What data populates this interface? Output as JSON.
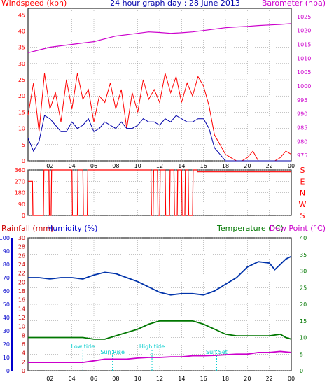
{
  "title": "24 hour graph day : 28 June 2013",
  "colors": {
    "wind": "#ff0000",
    "gust": "#ff0000",
    "avg_wind": "#0000aa",
    "barometer": "#cc00cc",
    "direction": "#ff0000",
    "humidity": "#0033aa",
    "temperature": "#007700",
    "dewpoint": "#cc00cc",
    "rain_axis": "#cc0000",
    "humidity_axis": "#0000cc",
    "temp_axis": "#007700",
    "events": "#00cccc",
    "axis": "#000000",
    "grid": "#888888",
    "border": "#000000"
  },
  "chart_data": [
    {
      "type": "line",
      "panel": "wind-pressure",
      "left_axis_label": "Windspeed (kph)",
      "right_axis_label": "Barometer (hpa)",
      "left_ticks": [
        "0",
        "5",
        "10",
        "15",
        "20",
        "25",
        "30",
        "35",
        "40",
        "45"
      ],
      "right_ticks": [
        "975",
        "980",
        "985",
        "990",
        "995",
        "1000",
        "1005",
        "1010",
        "1015",
        "1020",
        "1025"
      ],
      "x_ticks": [
        "02",
        "04",
        "06",
        "08",
        "10",
        "12",
        "14",
        "16",
        "18",
        "20",
        "22",
        "00"
      ],
      "xlim": [
        0,
        24
      ],
      "ylim_left": [
        0,
        47
      ],
      "ylim_right": [
        973,
        1028
      ],
      "grid": true,
      "series": [
        {
          "name": "Wind gust",
          "axis": "left",
          "x": [
            0,
            0.5,
            1,
            1.5,
            2,
            2.5,
            3,
            3.5,
            4,
            4.5,
            5,
            5.5,
            6,
            6.5,
            7,
            7.5,
            8,
            8.5,
            9,
            9.5,
            10,
            10.5,
            11,
            11.5,
            12,
            12.5,
            13,
            13.5,
            14,
            14.5,
            15,
            15.5,
            16,
            16.5,
            17,
            17.5,
            18,
            18.5,
            19,
            19.5,
            20,
            20.5,
            21,
            21.5,
            22,
            22.5,
            23,
            23.5,
            24
          ],
          "values": [
            14,
            24,
            9,
            27,
            16,
            21,
            12,
            25,
            16,
            27,
            19,
            22,
            12,
            20,
            18,
            24,
            16,
            22,
            10,
            21,
            15,
            25,
            19,
            22,
            18,
            27,
            21,
            26,
            18,
            24,
            20,
            26,
            23,
            17,
            8,
            5,
            2,
            1,
            0,
            0,
            1,
            3,
            0,
            0,
            0,
            0,
            1,
            3,
            2
          ]
        },
        {
          "name": "Wind average",
          "axis": "left",
          "x": [
            0,
            0.5,
            1,
            1.5,
            2,
            2.5,
            3,
            3.5,
            4,
            4.5,
            5,
            5.5,
            6,
            6.5,
            7,
            7.5,
            8,
            8.5,
            9,
            9.5,
            10,
            10.5,
            11,
            11.5,
            12,
            12.5,
            13,
            13.5,
            14,
            14.5,
            15,
            15.5,
            16,
            16.5,
            17,
            17.5,
            18,
            18.5,
            19,
            19.5,
            20,
            20.5,
            21,
            21.5,
            22,
            22.5,
            23,
            23.5,
            24
          ],
          "values": [
            7,
            3,
            6,
            14,
            13,
            11,
            9,
            9,
            12,
            10,
            11,
            13,
            9,
            10,
            12,
            11,
            10,
            12,
            10,
            10,
            11,
            13,
            12,
            12,
            11,
            13,
            12,
            14,
            13,
            12,
            12,
            13,
            13,
            10,
            4,
            2,
            0,
            0,
            0,
            0,
            0,
            0,
            0,
            0,
            0,
            0,
            0,
            0,
            0
          ]
        },
        {
          "name": "Barometer",
          "axis": "right",
          "x": [
            0,
            1,
            2,
            3,
            4,
            5,
            6,
            7,
            8,
            9,
            10,
            11,
            12,
            13,
            14,
            15,
            16,
            17,
            18,
            19,
            20,
            21,
            22,
            23,
            24
          ],
          "values": [
            1012,
            1013,
            1014,
            1014.5,
            1015,
            1015.5,
            1016,
            1017,
            1018,
            1018.5,
            1019,
            1019.5,
            1019.3,
            1019,
            1019.2,
            1019.5,
            1020,
            1020.5,
            1021,
            1021.3,
            1021.5,
            1021.8,
            1022,
            1022.2,
            1022.5
          ]
        }
      ]
    },
    {
      "type": "line",
      "panel": "wind-direction",
      "left_ticks": [
        "0",
        "90",
        "180",
        "270",
        "360"
      ],
      "right_ticks": [
        "S",
        "W",
        "N",
        "E",
        "S"
      ],
      "xlim": [
        0,
        24
      ],
      "ylim": [
        0,
        360
      ],
      "grid": true,
      "series": [
        {
          "name": "Direction",
          "x": [
            0,
            0.4,
            0.45,
            1.4,
            1.45,
            1.9,
            1.95,
            2.1,
            2.15,
            4.0,
            4.05,
            4.5,
            4.55,
            5.0,
            5.05,
            5.4,
            5.45,
            11.2,
            11.25,
            11.4,
            11.45,
            11.8,
            11.85,
            12.0,
            12.05,
            12.5,
            12.55,
            12.9,
            12.95,
            13.3,
            13.35,
            13.6,
            13.65,
            14.0,
            14.05,
            14.3,
            14.35,
            14.6,
            14.65,
            15.0,
            15.05,
            15.4,
            15.45,
            24
          ],
          "values": [
            270,
            270,
            0,
            0,
            360,
            360,
            0,
            0,
            360,
            360,
            0,
            0,
            360,
            360,
            0,
            0,
            360,
            360,
            0,
            0,
            360,
            360,
            0,
            0,
            360,
            360,
            0,
            0,
            360,
            360,
            0,
            0,
            360,
            360,
            0,
            0,
            360,
            360,
            0,
            0,
            360,
            360,
            345,
            345
          ]
        }
      ]
    },
    {
      "type": "line",
      "panel": "temperature-humidity-rain",
      "rain_axis_label": "Rainfall (mm)",
      "humidity_axis_label": "Humidity (%)",
      "temperature_axis_label": "Temperature (°C)",
      "dewpoint_axis_label": "Dew Point (°C)",
      "rain_ticks": [
        "0",
        "2",
        "4",
        "6",
        "8",
        "10",
        "12",
        "14",
        "16",
        "18",
        "20",
        "22",
        "24",
        "26",
        "28",
        "30"
      ],
      "humidity_ticks": [
        "0",
        "10",
        "20",
        "30",
        "40",
        "50",
        "60",
        "70",
        "80",
        "90",
        "100"
      ],
      "temp_ticks": [
        "0",
        "5",
        "10",
        "15",
        "20",
        "25",
        "30",
        "35",
        "40"
      ],
      "x_ticks": [
        "02",
        "04",
        "06",
        "08",
        "10",
        "12",
        "14",
        "16",
        "18",
        "20",
        "22",
        "00"
      ],
      "xlim": [
        0,
        24
      ],
      "ylim_humidity": [
        0,
        100
      ],
      "ylim_temp": [
        0,
        40
      ],
      "grid": true,
      "events": [
        {
          "label": "Low tide",
          "x": 5.0
        },
        {
          "label": "Sun Rise",
          "x": 7.7
        },
        {
          "label": "High tide",
          "x": 11.3
        },
        {
          "label": "Sun Set",
          "x": 17.2
        }
      ],
      "series": [
        {
          "name": "Humidity",
          "axis": "humidity",
          "x": [
            0,
            1,
            2,
            3,
            4,
            5,
            6,
            7,
            8,
            9,
            10,
            11,
            12,
            13,
            14,
            15,
            16,
            17,
            18,
            19,
            20,
            21,
            22,
            22.5,
            23,
            23.5,
            24
          ],
          "values": [
            70,
            70,
            69,
            70,
            70,
            69,
            72,
            74,
            73,
            70,
            67,
            63,
            59,
            57,
            58,
            58,
            57,
            60,
            65,
            70,
            78,
            82,
            81,
            76,
            80,
            84,
            86
          ]
        },
        {
          "name": "Temperature",
          "axis": "temp",
          "x": [
            0,
            1,
            2,
            3,
            4,
            5,
            6,
            7,
            8,
            9,
            10,
            11,
            12,
            13,
            14,
            15,
            16,
            17,
            18,
            19,
            20,
            21,
            22,
            23,
            23.5,
            24
          ],
          "values": [
            10,
            10,
            10,
            10,
            10,
            10,
            9.5,
            9.5,
            10.5,
            11.5,
            12.5,
            14,
            15,
            15,
            15,
            15,
            14,
            12.5,
            11,
            10.5,
            10.5,
            10.5,
            10.5,
            11,
            10,
            9.5
          ]
        },
        {
          "name": "Dew Point",
          "axis": "temp",
          "x": [
            0,
            1,
            2,
            3,
            4,
            5,
            6,
            7,
            8,
            9,
            10,
            11,
            12,
            13,
            14,
            15,
            16,
            17,
            18,
            19,
            20,
            21,
            22,
            23,
            24
          ],
          "values": [
            2.5,
            2.5,
            2.5,
            2.5,
            2.5,
            2.5,
            3,
            3.5,
            3.5,
            3.5,
            3.8,
            4,
            4,
            4.2,
            4.2,
            4.5,
            4.5,
            4.6,
            4.8,
            5,
            5,
            5.5,
            5.5,
            5.8,
            5.5
          ]
        }
      ]
    }
  ]
}
